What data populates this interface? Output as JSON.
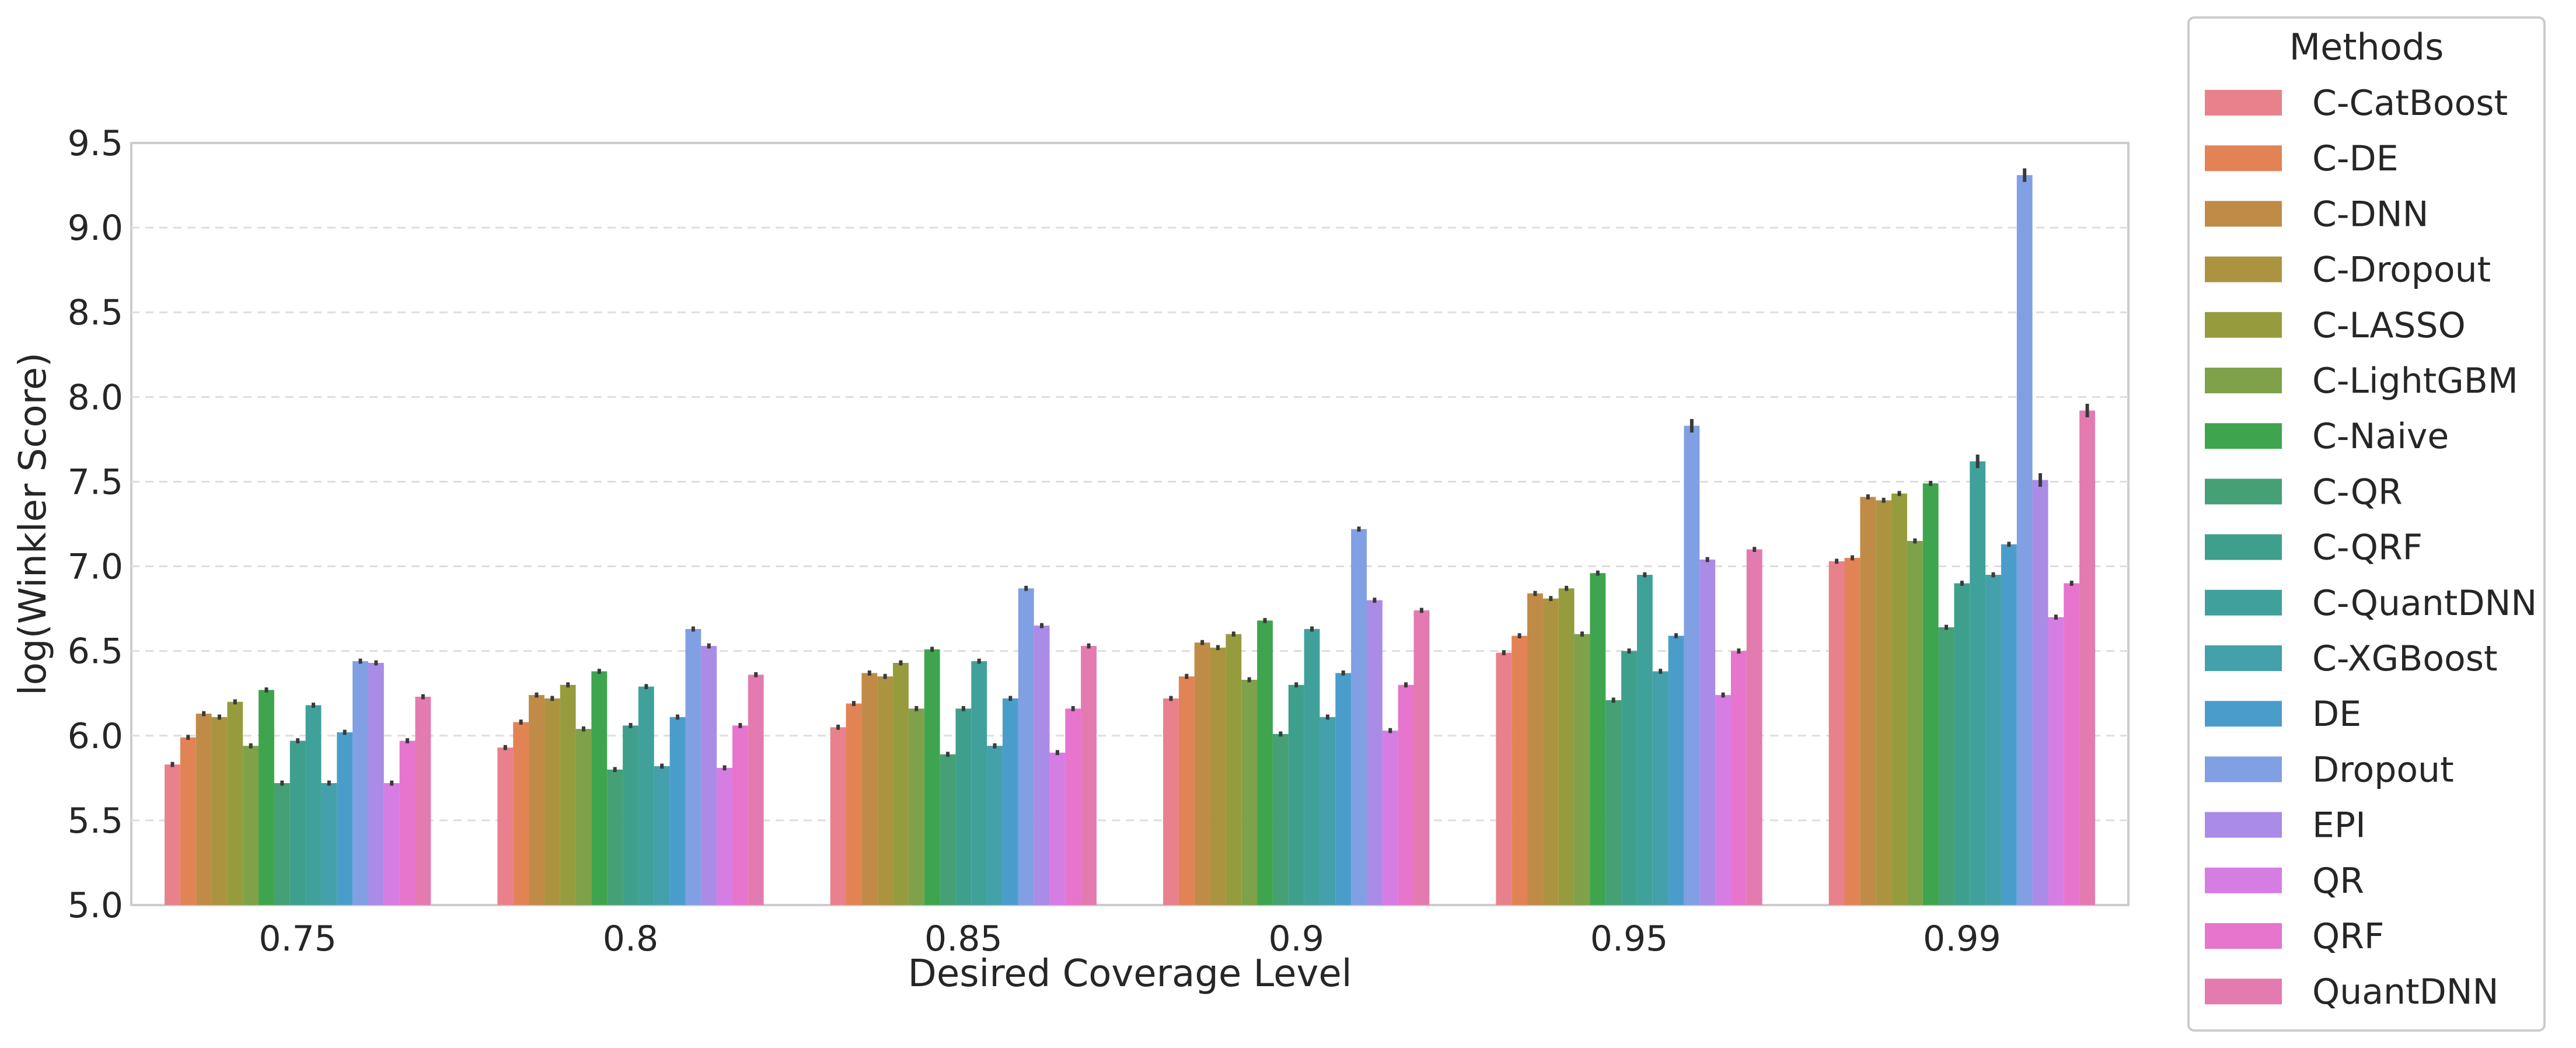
{
  "chart_data": {
    "type": "bar",
    "title": "",
    "xlabel": "Desired Coverage Level",
    "ylabel": "log(Winkler Score)",
    "ylim": [
      5.0,
      9.5
    ],
    "yticks": [
      "5.0",
      "5.5",
      "6.0",
      "6.5",
      "7.0",
      "7.5",
      "8.0",
      "8.5",
      "9.0",
      "9.5"
    ],
    "grid": "y-dashed",
    "legend_title": "Methods",
    "legend_position": "outside-right",
    "categories": [
      "0.75",
      "0.8",
      "0.85",
      "0.9",
      "0.95",
      "0.99"
    ],
    "series": [
      {
        "name": "C-CatBoost",
        "color": "#e8818c",
        "values": [
          5.83,
          5.93,
          6.05,
          6.22,
          6.49,
          7.03
        ]
      },
      {
        "name": "C-DE",
        "color": "#e28355",
        "values": [
          5.99,
          6.08,
          6.19,
          6.35,
          6.59,
          7.05
        ]
      },
      {
        "name": "C-DNN",
        "color": "#c08b46",
        "values": [
          6.13,
          6.24,
          6.37,
          6.55,
          6.84,
          7.41
        ]
      },
      {
        "name": "C-Dropout",
        "color": "#ac9340",
        "values": [
          6.11,
          6.22,
          6.35,
          6.52,
          6.81,
          7.39
        ]
      },
      {
        "name": "C-LASSO",
        "color": "#969c3e",
        "values": [
          6.2,
          6.3,
          6.43,
          6.6,
          6.87,
          7.43
        ]
      },
      {
        "name": "C-LightGBM",
        "color": "#7ea14a",
        "values": [
          5.94,
          6.04,
          6.16,
          6.33,
          6.6,
          7.15
        ]
      },
      {
        "name": "C-Naive",
        "color": "#3ea54e",
        "values": [
          6.27,
          6.38,
          6.51,
          6.68,
          6.96,
          7.49
        ]
      },
      {
        "name": "C-QR",
        "color": "#45a075",
        "values": [
          5.72,
          5.8,
          5.89,
          6.01,
          6.21,
          6.64
        ]
      },
      {
        "name": "C-QRF",
        "color": "#3ea08c",
        "values": [
          5.97,
          6.06,
          6.16,
          6.3,
          6.5,
          6.9
        ]
      },
      {
        "name": "C-QuantDNN",
        "color": "#40a19b",
        "values": [
          6.18,
          6.29,
          6.44,
          6.63,
          6.95,
          7.62
        ]
      },
      {
        "name": "C-XGBoost",
        "color": "#44a0ab",
        "values": [
          5.72,
          5.82,
          5.94,
          6.11,
          6.38,
          6.95
        ]
      },
      {
        "name": "DE",
        "color": "#4a9dcb",
        "values": [
          6.02,
          6.11,
          6.22,
          6.37,
          6.59,
          7.13
        ]
      },
      {
        "name": "Dropout",
        "color": "#819fe3",
        "values": [
          6.44,
          6.63,
          6.87,
          7.22,
          7.83,
          9.31
        ]
      },
      {
        "name": "EPI",
        "color": "#aa8be6",
        "values": [
          6.43,
          6.53,
          6.65,
          6.8,
          7.04,
          7.51
        ]
      },
      {
        "name": "QR",
        "color": "#d67de3",
        "values": [
          5.72,
          5.81,
          5.9,
          6.03,
          6.24,
          6.7
        ]
      },
      {
        "name": "QRF",
        "color": "#e774cd",
        "values": [
          5.97,
          6.06,
          6.16,
          6.3,
          6.5,
          6.9
        ]
      },
      {
        "name": "QuantDNN",
        "color": "#e47bb0",
        "values": [
          6.23,
          6.36,
          6.53,
          6.74,
          7.1,
          7.92
        ]
      }
    ]
  }
}
